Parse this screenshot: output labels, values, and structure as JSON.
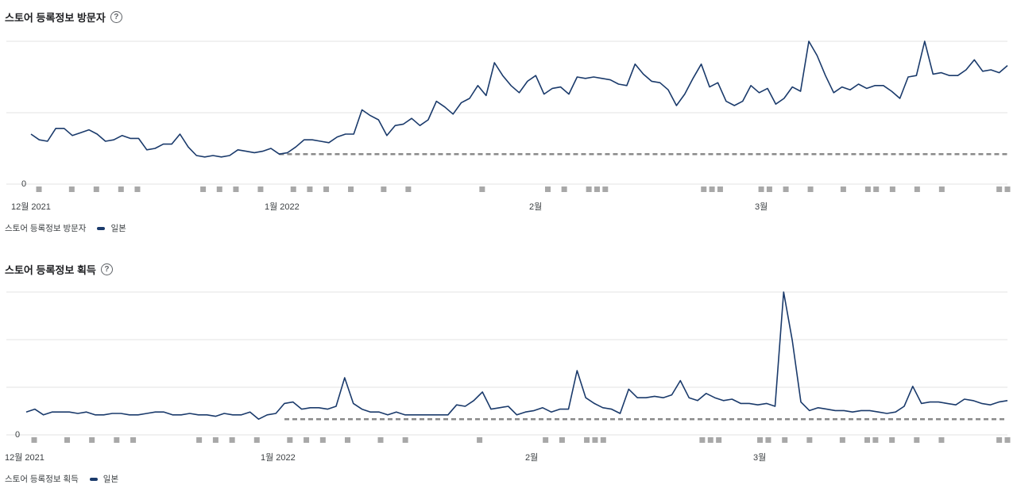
{
  "colors": {
    "series": "#1a3a6b",
    "baseline": "#8a8a8a",
    "grid": "#e3e3e3",
    "marker": "#a8a8a8"
  },
  "chart_data": [
    {
      "type": "line",
      "title": "스토어 등록정보 방문자",
      "help_glyph": "?",
      "legend_label": "스토어 등록정보 방문자",
      "series_name": "일본",
      "x_tick_labels": [
        "12월 2021",
        "1월 2022",
        "2월",
        "3월"
      ],
      "y_tick_labels": [
        "0"
      ],
      "ylim": [
        0,
        100
      ],
      "baseline": {
        "value": 21,
        "start_index": 30
      },
      "marker_days": [
        0,
        4,
        7,
        10,
        12,
        20,
        22,
        24,
        27,
        31,
        33,
        35,
        38,
        42,
        45,
        54,
        62,
        64,
        67,
        68,
        69,
        81,
        82,
        83,
        88,
        89,
        91,
        94,
        98,
        101,
        102,
        104,
        107,
        110,
        117,
        118
      ],
      "values": [
        35,
        31,
        30,
        39,
        39,
        34,
        36,
        38,
        35,
        30,
        31,
        34,
        32,
        32,
        24,
        25,
        28,
        28,
        35,
        26,
        20,
        19,
        20,
        19,
        20,
        24,
        23,
        22,
        23,
        25,
        21,
        22,
        26,
        31,
        31,
        30,
        29,
        33,
        35,
        35,
        52,
        48,
        45,
        34,
        41,
        42,
        46,
        41,
        45,
        58,
        54,
        49,
        57,
        60,
        69,
        62,
        85,
        76,
        69,
        64,
        72,
        76,
        63,
        67,
        68,
        63,
        75,
        74,
        75,
        74,
        73,
        70,
        69,
        84,
        77,
        72,
        71,
        66,
        55,
        63,
        74,
        84,
        68,
        71,
        58,
        55,
        58,
        69,
        64,
        67,
        56,
        60,
        68,
        65,
        100,
        90,
        76,
        64,
        68,
        66,
        70,
        67,
        69,
        69,
        65,
        60,
        75,
        76,
        100,
        77,
        78,
        76,
        76,
        80,
        87,
        79,
        80,
        78,
        83
      ]
    },
    {
      "type": "line",
      "title": "스토어 등록정보 획득",
      "help_glyph": "?",
      "legend_label": "스토어 등록정보 획득",
      "series_name": "일본",
      "x_tick_labels": [
        "12월 2021",
        "1월 2022",
        "2월",
        "3월"
      ],
      "y_tick_labels": [
        "0"
      ],
      "ylim": [
        0,
        100
      ],
      "baseline": {
        "value": 11,
        "start_index": 30
      },
      "marker_days": [
        0,
        4,
        7,
        10,
        12,
        20,
        22,
        24,
        27,
        31,
        33,
        35,
        38,
        42,
        45,
        54,
        62,
        64,
        67,
        68,
        69,
        81,
        82,
        83,
        88,
        89,
        91,
        94,
        98,
        101,
        102,
        104,
        107,
        110,
        117,
        118
      ],
      "values": [
        16,
        18,
        14,
        16,
        16,
        16,
        15,
        16,
        14,
        14,
        15,
        15,
        14,
        14,
        15,
        16,
        16,
        14,
        14,
        15,
        14,
        14,
        13,
        15,
        14,
        14,
        16,
        11,
        14,
        15,
        22,
        23,
        18,
        19,
        19,
        18,
        20,
        40,
        22,
        18,
        16,
        16,
        14,
        16,
        14,
        14,
        14,
        14,
        14,
        14,
        21,
        20,
        24,
        30,
        18,
        19,
        20,
        14,
        16,
        17,
        19,
        16,
        18,
        18,
        45,
        26,
        22,
        19,
        18,
        15,
        32,
        26,
        26,
        27,
        26,
        28,
        38,
        26,
        24,
        29,
        26,
        24,
        25,
        22,
        22,
        21,
        22,
        20,
        100,
        66,
        23,
        17,
        19,
        18,
        17,
        17,
        16,
        17,
        17,
        16,
        15,
        16,
        20,
        34,
        22,
        23,
        23,
        22,
        21,
        25,
        24,
        22,
        21,
        23,
        24
      ]
    }
  ]
}
